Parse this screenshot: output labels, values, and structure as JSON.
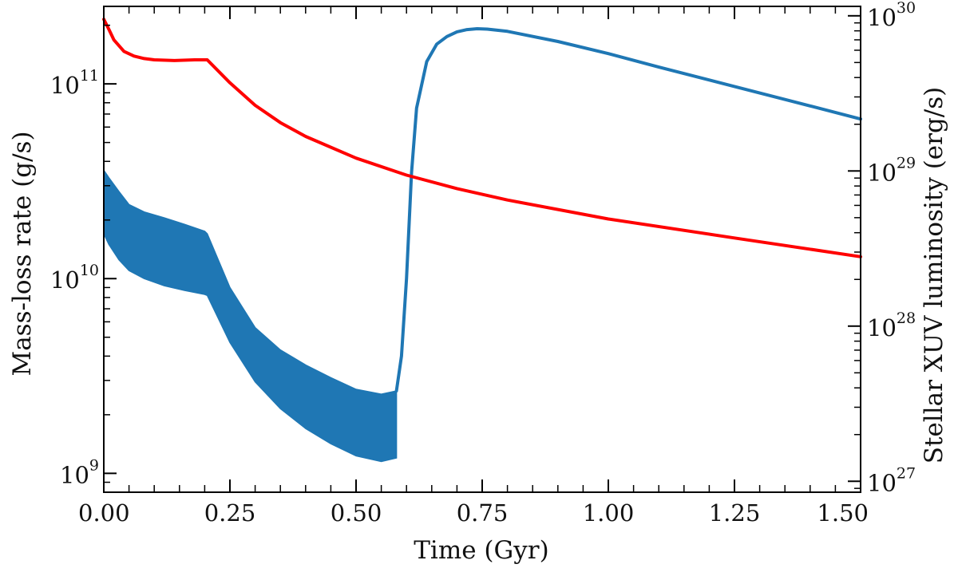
{
  "chart_data": {
    "type": "line",
    "xlabel": "Time (Gyr)",
    "ylabel_left": "Mass-loss rate (g/s)",
    "ylabel_right": "Stellar XUV luminosity (erg/s)",
    "xlim": [
      0,
      1.5
    ],
    "ylim_left": [
      800000000,
      250000000000
    ],
    "ylim_right": [
      8.5e+26,
      1.15e+30
    ],
    "yscale_left": "log",
    "yscale_right": "log",
    "x_ticks": [
      "0.00",
      "0.25",
      "0.50",
      "0.75",
      "1.00",
      "1.25",
      "1.50"
    ],
    "y_left_ticks": [
      {
        "base": "10",
        "exp": "9",
        "value": 1000000000
      },
      {
        "base": "10",
        "exp": "10",
        "value": 10000000000
      },
      {
        "base": "10",
        "exp": "11",
        "value": 100000000000
      }
    ],
    "y_right_ticks": [
      {
        "base": "10",
        "exp": "27",
        "value": 1e+27
      },
      {
        "base": "10",
        "exp": "28",
        "value": 1e+28
      },
      {
        "base": "10",
        "exp": "29",
        "value": 1e+29
      },
      {
        "base": "10",
        "exp": "30",
        "value": 1e+30
      }
    ],
    "grid": false,
    "series": [
      {
        "axis": "right",
        "color": "#ff0000",
        "style": "line",
        "x": [
          0.0,
          0.01,
          0.02,
          0.04,
          0.06,
          0.08,
          0.1,
          0.14,
          0.18,
          0.205,
          0.25,
          0.3,
          0.35,
          0.4,
          0.5,
          0.6,
          0.7,
          0.8,
          1.0,
          1.25,
          1.5
        ],
        "y": [
          9.5e+29,
          8.2e+29,
          7e+29,
          5.9e+29,
          5.5e+29,
          5.3e+29,
          5.2e+29,
          5.15e+29,
          5.2e+29,
          5.2e+29,
          3.7e+29,
          2.65e+29,
          2.05e+29,
          1.67e+29,
          1.21e+29,
          9.4e+28,
          7.7e+28,
          6.5e+28,
          4.9e+28,
          3.7e+28,
          2.8e+28
        ]
      },
      {
        "axis": "left",
        "color": "#1f77b4",
        "style": "band",
        "x": [
          0.0,
          0.01,
          0.03,
          0.05,
          0.08,
          0.12,
          0.16,
          0.2,
          0.205,
          0.25,
          0.3,
          0.35,
          0.4,
          0.45,
          0.5,
          0.55,
          0.58
        ],
        "y_upper": [
          36000000000,
          33000000000,
          28000000000,
          24000000000,
          22000000000,
          20500000000,
          19000000000,
          17500000000,
          17000000000,
          9000000000,
          5600000000,
          4300000000,
          3600000000,
          3100000000,
          2700000000,
          2550000000,
          2650000000
        ],
        "y_lower": [
          17000000000,
          15000000000,
          12500000000,
          11000000000,
          10000000000,
          9200000000,
          8700000000,
          8300000000,
          8200000000,
          4700000000,
          2950000000,
          2150000000,
          1700000000,
          1420000000,
          1230000000,
          1150000000,
          1200000000
        ]
      },
      {
        "axis": "left",
        "color": "#1f77b4",
        "style": "line",
        "x": [
          0.58,
          0.59,
          0.6,
          0.61,
          0.62,
          0.64,
          0.66,
          0.68,
          0.7,
          0.72,
          0.74,
          0.76,
          0.8,
          0.9,
          1.0,
          1.1,
          1.25,
          1.4,
          1.5
        ],
        "y": [
          2650000000,
          4000000000,
          10000000000,
          35000000000,
          75000000000,
          130000000000,
          160000000000,
          175000000000,
          185000000000,
          190000000000,
          192000000000,
          191000000000,
          186000000000,
          165000000000,
          143000000000,
          122000000000,
          97000000000,
          77000000000,
          66000000000
        ]
      }
    ]
  }
}
